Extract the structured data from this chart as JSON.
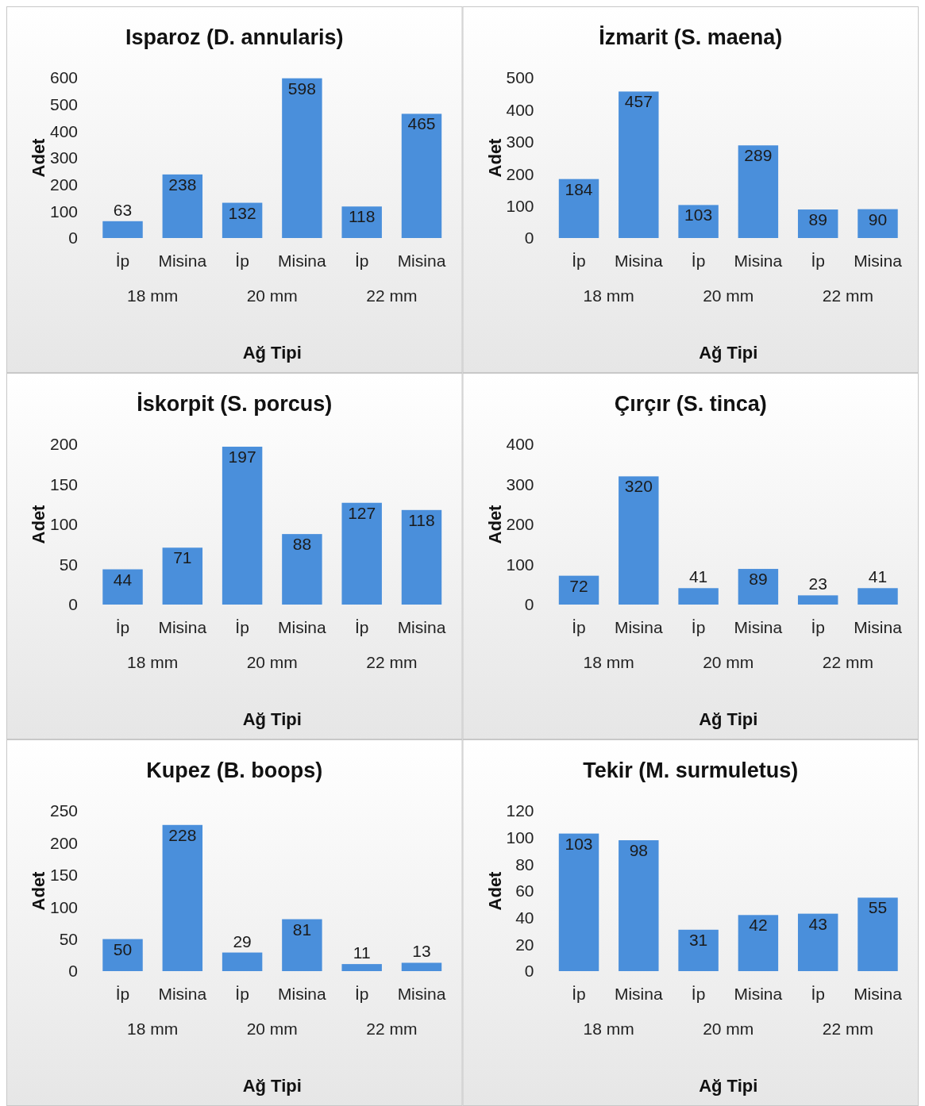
{
  "chart_data": [
    {
      "type": "bar",
      "title": "Isparoz (D. annularis)",
      "xlabel": "Ağ Tipi",
      "ylabel": "Adet",
      "categories": [
        "İp",
        "Misina",
        "İp",
        "Misina",
        "İp",
        "Misina"
      ],
      "annotations": [
        "18 mm",
        "20 mm",
        "22 mm"
      ],
      "values": [
        63,
        238,
        132,
        598,
        118,
        465
      ],
      "color": "#4a8fdb",
      "ylim": [
        0,
        600
      ],
      "yticks": [
        0,
        100,
        200,
        300,
        400,
        500,
        600
      ],
      "data_labels": true
    },
    {
      "type": "bar",
      "title": "İzmarit (S. maena)",
      "xlabel": "Ağ Tipi",
      "ylabel": "Adet",
      "categories": [
        "İp",
        "Misina",
        "İp",
        "Misina",
        "İp",
        "Misina"
      ],
      "annotations": [
        "18 mm",
        "20 mm",
        "22 mm"
      ],
      "values": [
        184,
        457,
        103,
        289,
        89,
        90
      ],
      "color": "#4a8fdb",
      "ylim": [
        0,
        500
      ],
      "yticks": [
        0,
        100,
        200,
        300,
        400,
        500
      ],
      "data_labels": true
    },
    {
      "type": "bar",
      "title": "İskorpit (S. porcus)",
      "xlabel": "Ağ Tipi",
      "ylabel": "Adet",
      "categories": [
        "İp",
        "Misina",
        "İp",
        "Misina",
        "İp",
        "Misina"
      ],
      "annotations": [
        "18 mm",
        "20 mm",
        "22 mm"
      ],
      "values": [
        44,
        71,
        197,
        88,
        127,
        118
      ],
      "color": "#4a8fdb",
      "ylim": [
        0,
        200
      ],
      "yticks": [
        0,
        50,
        100,
        150,
        200
      ],
      "data_labels": true
    },
    {
      "type": "bar",
      "title": "Çırçır (S. tinca)",
      "xlabel": "Ağ Tipi",
      "ylabel": "Adet",
      "categories": [
        "İp",
        "Misina",
        "İp",
        "Misina",
        "İp",
        "Misina"
      ],
      "annotations": [
        "18 mm",
        "20 mm",
        "22 mm"
      ],
      "values": [
        72,
        320,
        41,
        89,
        23,
        41
      ],
      "color": "#4a8fdb",
      "ylim": [
        0,
        400
      ],
      "yticks": [
        0,
        100,
        200,
        300,
        400
      ],
      "data_labels": true
    },
    {
      "type": "bar",
      "title": "Kupez (B. boops)",
      "xlabel": "Ağ Tipi",
      "ylabel": "Adet",
      "categories": [
        "İp",
        "Misina",
        "İp",
        "Misina",
        "İp",
        "Misina"
      ],
      "annotations": [
        "18 mm",
        "20 mm",
        "22 mm"
      ],
      "values": [
        50,
        228,
        29,
        81,
        11,
        13
      ],
      "color": "#4a8fdb",
      "ylim": [
        0,
        250
      ],
      "yticks": [
        0,
        50,
        100,
        150,
        200,
        250
      ],
      "data_labels": true
    },
    {
      "type": "bar",
      "title": "Tekir (M. surmuletus)",
      "xlabel": "Ağ Tipi",
      "ylabel": "Adet",
      "categories": [
        "İp",
        "Misina",
        "İp",
        "Misina",
        "İp",
        "Misina"
      ],
      "annotations": [
        "18 mm",
        "20 mm",
        "22 mm"
      ],
      "values": [
        103,
        98,
        31,
        42,
        43,
        55
      ],
      "color": "#4a8fdb",
      "ylim": [
        0,
        120
      ],
      "yticks": [
        0,
        20,
        40,
        60,
        80,
        100,
        120
      ],
      "data_labels": true
    }
  ]
}
